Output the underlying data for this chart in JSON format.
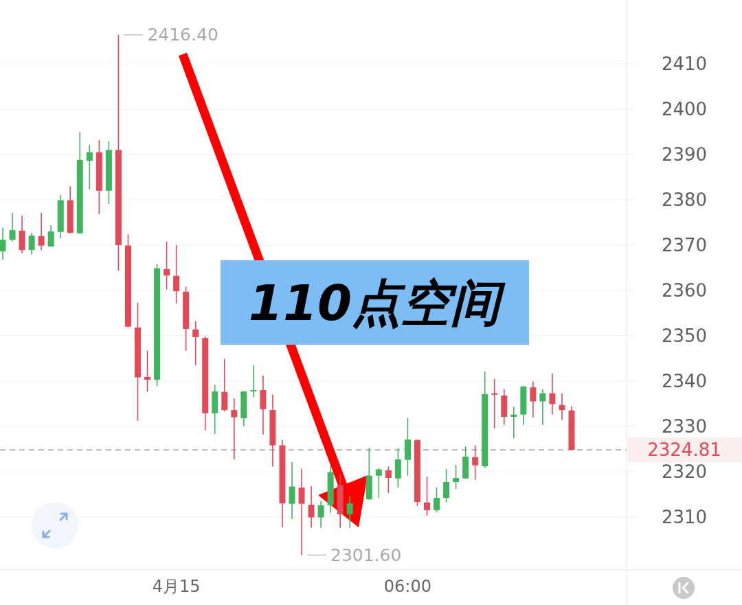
{
  "chart_data": {
    "type": "candlestick",
    "categories": [
      null,
      null,
      null,
      null,
      null,
      null,
      null,
      null,
      null,
      null,
      null,
      null,
      null,
      null,
      null,
      null,
      null,
      null,
      "4月15",
      null,
      null,
      null,
      null,
      null,
      null,
      null,
      null,
      null,
      null,
      null,
      null,
      null,
      null,
      null,
      null,
      null,
      null,
      null,
      null,
      null,
      null,
      null,
      "06:00",
      null,
      null,
      null,
      null,
      null,
      null,
      null,
      null,
      null,
      null,
      null,
      null,
      null,
      null,
      null,
      null,
      null
    ],
    "ohlc": [
      [
        2368.6,
        2373.8,
        2366.8,
        2371.2
      ],
      [
        2371.2,
        2377.1,
        2370.8,
        2373.3
      ],
      [
        2373.2,
        2376.5,
        2368.2,
        2368.9
      ],
      [
        2368.9,
        2372.7,
        2367.9,
        2372.1
      ],
      [
        2372.0,
        2377.1,
        2368.9,
        2369.9
      ],
      [
        2369.7,
        2374.4,
        2369.6,
        2373.0
      ],
      [
        2372.9,
        2381.1,
        2371.5,
        2379.9
      ],
      [
        2379.9,
        2383.0,
        2372.6,
        2372.7
      ],
      [
        2372.6,
        2395.0,
        2372.5,
        2388.8
      ],
      [
        2388.6,
        2392.1,
        2382.3,
        2390.5
      ],
      [
        2390.5,
        2393.2,
        2376.8,
        2382.0
      ],
      [
        2382.0,
        2392.9,
        2379.1,
        2391.0
      ],
      [
        2391.0,
        2416.4,
        2364.4,
        2370.0
      ],
      [
        2369.9,
        2372.4,
        2351.9,
        2352.0
      ],
      [
        2351.8,
        2357.3,
        2331.2,
        2340.8
      ],
      [
        2340.9,
        2346.7,
        2337.7,
        2340.3
      ],
      [
        2340.3,
        2365.9,
        2338.9,
        2364.9
      ],
      [
        2364.7,
        2370.8,
        2360.2,
        2363.3
      ],
      [
        2363.2,
        2370.0,
        2357.1,
        2359.8
      ],
      [
        2359.7,
        2360.8,
        2346.7,
        2351.5
      ],
      [
        2351.4,
        2353.2,
        2343.5,
        2349.7
      ],
      [
        2349.5,
        2349.9,
        2329.1,
        2332.9
      ],
      [
        2332.9,
        2339.2,
        2328.3,
        2337.7
      ],
      [
        2337.6,
        2344.9,
        2333.3,
        2333.6
      ],
      [
        2333.6,
        2336.2,
        2322.7,
        2332.0
      ],
      [
        2331.8,
        2337.8,
        2330.0,
        2337.7
      ],
      [
        2337.7,
        2343.5,
        2336.4,
        2338.0
      ],
      [
        2338.0,
        2341.2,
        2328.2,
        2333.8
      ],
      [
        2333.6,
        2337.0,
        2321.2,
        2325.8
      ],
      [
        2325.8,
        2327.0,
        2307.7,
        2313.0
      ],
      [
        2312.9,
        2322.1,
        2309.5,
        2316.7
      ],
      [
        2316.5,
        2320.6,
        2301.6,
        2312.9
      ],
      [
        2312.7,
        2316.8,
        2307.6,
        2309.9
      ],
      [
        2309.9,
        2313.5,
        2307.6,
        2312.6
      ],
      [
        2312.6,
        2321.4,
        2310.9,
        2319.9
      ],
      [
        2317.0,
        2319.5,
        2307.6,
        2310.6
      ],
      [
        2310.6,
        2314.5,
        2307.6,
        2313.0
      ],
      null,
      [
        2313.9,
        2325.2,
        2313.8,
        2319.1
      ],
      [
        2319.1,
        2320.8,
        2314.2,
        2320.5
      ],
      [
        2320.3,
        2321.2,
        2315.3,
        2318.6
      ],
      [
        2318.5,
        2325.2,
        2316.5,
        2322.7
      ],
      [
        2322.6,
        2331.8,
        2319.1,
        2327.1
      ],
      [
        2327.0,
        2327.1,
        2312.4,
        2313.3
      ],
      [
        2313.2,
        2318.9,
        2310.3,
        2311.5
      ],
      [
        2311.5,
        2316.5,
        2311.0,
        2314.2
      ],
      [
        2314.2,
        2320.6,
        2313.2,
        2317.7
      ],
      [
        2317.7,
        2321.5,
        2316.2,
        2318.6
      ],
      [
        2318.5,
        2325.6,
        2318.4,
        2323.3
      ],
      [
        2323.2,
        2325.8,
        2318.2,
        2321.4
      ],
      [
        2321.2,
        2342.1,
        2320.8,
        2337.1
      ],
      [
        2337.3,
        2340.5,
        2329.5,
        2337.0
      ],
      [
        2336.8,
        2338.2,
        2330.3,
        2332.1
      ],
      [
        2332.1,
        2334.3,
        2327.4,
        2332.6
      ],
      [
        2332.6,
        2338.9,
        2330.3,
        2338.8
      ],
      [
        2338.6,
        2339.9,
        2332.0,
        2335.5
      ],
      [
        2335.5,
        2338.2,
        2330.3,
        2337.3
      ],
      [
        2337.3,
        2341.7,
        2332.6,
        2334.9
      ],
      [
        2334.7,
        2337.3,
        2331.4,
        2333.6
      ],
      [
        2333.5,
        2334.4,
        2324.81,
        2324.81
      ]
    ],
    "colors": [
      "#3fb55e",
      "#3fb55e",
      "#e04a59",
      "#3fb55e",
      "#e04a59",
      "#3fb55e",
      "#3fb55e",
      "#e04a59",
      "#3fb55e",
      "#3fb55e",
      "#e04a59",
      "#3fb55e",
      "#e04a59",
      "#e04a59",
      "#e04a59",
      "#e04a59",
      "#3fb55e",
      "#e04a59",
      "#e04a59",
      "#e04a59",
      "#e04a59",
      "#e04a59",
      "#3fb55e",
      "#e04a59",
      "#e04a59",
      "#3fb55e",
      "#3fb55e",
      "#e04a59",
      "#e04a59",
      "#e04a59",
      "#3fb55e",
      "#e04a59",
      "#e04a59",
      "#3fb55e",
      "#3fb55e",
      "#e04a59",
      "#3fb55e",
      null,
      "#3fb55e",
      "#3fb55e",
      "#e04a59",
      "#3fb55e",
      "#3fb55e",
      "#e04a59",
      "#e04a59",
      "#3fb55e",
      "#3fb55e",
      "#3fb55e",
      "#3fb55e",
      "#e04a59",
      "#3fb55e",
      "#e04a59",
      "#e04a59",
      "#3fb55e",
      "#3fb55e",
      "#e04a59",
      "#3fb55e",
      "#e04a59",
      "#e04a59",
      "#e04a59"
    ],
    "ylim": [
      2298.3,
      2424.1
    ],
    "yticks": [
      2310,
      2320,
      2330,
      2340,
      2350,
      2360,
      2370,
      2380,
      2390,
      2400,
      2410
    ],
    "grid": "y",
    "ref_lines": [
      {
        "axis": "y",
        "value": 2324.81,
        "label": "2324.81",
        "color": "#aaaaaa",
        "line_style": "dashed"
      }
    ],
    "annotations": [
      "110点空间",
      "2416.40",
      "2301.60"
    ]
  }
}
